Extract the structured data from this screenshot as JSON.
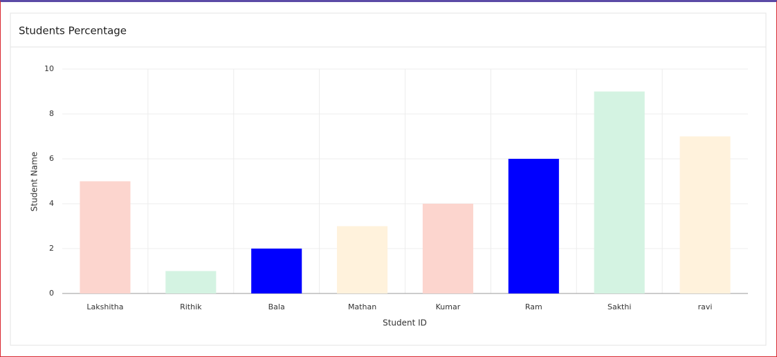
{
  "chart_data": {
    "type": "bar",
    "title": "Students Percentage",
    "x_label": "Student ID",
    "y_label": "Student Name",
    "categories": [
      "Lakshitha",
      "Rithik",
      "Bala",
      "Mathan",
      "Kumar",
      "Ram",
      "Sakthi",
      "ravi"
    ],
    "values": [
      5,
      1,
      2,
      3,
      4,
      6,
      9,
      7
    ],
    "colors": [
      "#fcd5ce",
      "#d4f3e2",
      "#0000ff",
      "#fff2dc",
      "#fcd5ce",
      "#0000ff",
      "#d4f3e2",
      "#fff2dc"
    ],
    "ylim": [
      0,
      10
    ],
    "yticks": [
      0,
      2,
      4,
      6,
      8,
      10
    ],
    "grid": true
  }
}
